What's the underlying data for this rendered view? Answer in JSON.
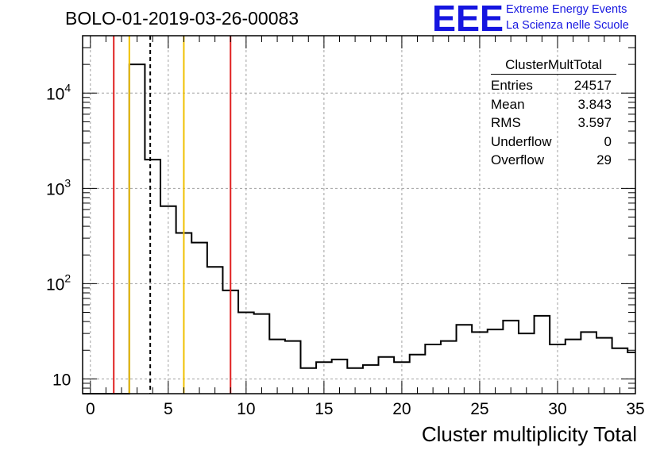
{
  "header": {
    "title": "BOLO-01-2019-03-26-00083",
    "logo_text": "EEE",
    "logo_line1": "Extreme Energy Events",
    "logo_line2": "La Scienza nelle Scuole"
  },
  "stats": {
    "title": "ClusterMultTotal",
    "rows": [
      {
        "label": "Entries",
        "value": "24517"
      },
      {
        "label": "Mean",
        "value": "3.843"
      },
      {
        "label": "RMS",
        "value": "3.597"
      },
      {
        "label": "Underflow",
        "value": "0"
      },
      {
        "label": "Overflow",
        "value": "29"
      }
    ]
  },
  "colors": {
    "histogram": "#000000",
    "red_cut": "#e02020",
    "yellow_cut": "#f0c000",
    "grid": "#a0a0a0",
    "logo": "#1515e0"
  },
  "chart_data": {
    "type": "histogram",
    "title": "BOLO-01-2019-03-26-00083",
    "xlabel": "Cluster multiplicity Total",
    "ylabel": "",
    "xlim": [
      -0.5,
      35
    ],
    "ylim": [
      7,
      40000
    ],
    "log_y": true,
    "grid": true,
    "x_ticks": [
      "0",
      "5",
      "10",
      "15",
      "20",
      "25",
      "30",
      "35"
    ],
    "y_ticks": [
      {
        "value": 10,
        "base": "10",
        "exp": ""
      },
      {
        "value": 100,
        "base": "10",
        "exp": "2"
      },
      {
        "value": 1000,
        "base": "10",
        "exp": "3"
      },
      {
        "value": 10000,
        "base": "10",
        "exp": "4"
      }
    ],
    "bin_edges": [
      -0.5,
      0.5,
      1.5,
      2.5,
      3.5,
      4.5,
      5.5,
      6.5,
      7.5,
      8.5,
      9.5,
      10.5,
      11.5,
      12.5,
      13.5,
      14.5,
      15.5,
      16.5,
      17.5,
      18.5,
      19.5,
      20.5,
      21.5,
      22.5,
      23.5,
      24.5,
      25.5,
      26.5,
      27.5,
      28.5,
      29.5,
      30.5,
      31.5,
      32.5,
      33.5,
      34.5,
      35.5
    ],
    "values": [
      0,
      0,
      0,
      20000,
      2000,
      650,
      340,
      270,
      150,
      85,
      50,
      48,
      26,
      25,
      13,
      15,
      16,
      13,
      14,
      17,
      15,
      18,
      23,
      25,
      37,
      31,
      33,
      41,
      30,
      46,
      23,
      26,
      31,
      27,
      21,
      19
    ],
    "vertical_lines": [
      {
        "x": 1.5,
        "color": "red",
        "style": "solid"
      },
      {
        "x": 2.5,
        "color": "yellow",
        "style": "solid"
      },
      {
        "x": 3.843,
        "color": "black",
        "style": "dashed"
      },
      {
        "x": 6.0,
        "color": "yellow",
        "style": "solid"
      },
      {
        "x": 9.0,
        "color": "red",
        "style": "solid"
      }
    ]
  }
}
